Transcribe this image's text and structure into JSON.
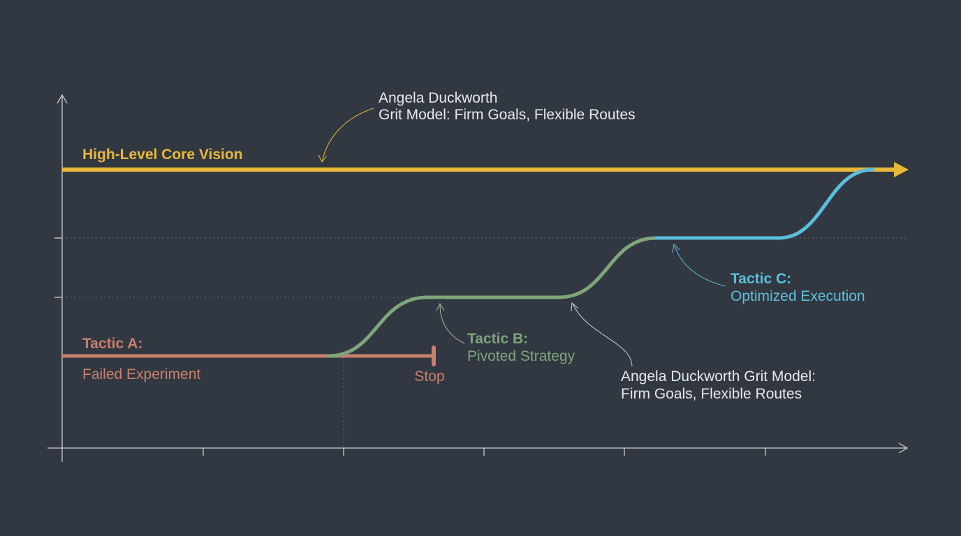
{
  "top_annotation": {
    "line1": "Angela Duckworth",
    "line2": "Grit Model: Firm Goals, Flexible Routes"
  },
  "vision": {
    "label": "High-Level Core Vision"
  },
  "tactic_a": {
    "title": "Tactic A:",
    "subtitle": "Failed Experiment",
    "end_label": "Stop"
  },
  "tactic_b": {
    "title": "Tactic B:",
    "subtitle": "Pivoted Strategy"
  },
  "tactic_c": {
    "title": "Tactic C:",
    "subtitle": "Optimized Execution"
  },
  "bottom_annotation": {
    "line1": "Angela Duckworth Grit Model:",
    "line2": "Firm Goals, Flexible Routes"
  }
}
